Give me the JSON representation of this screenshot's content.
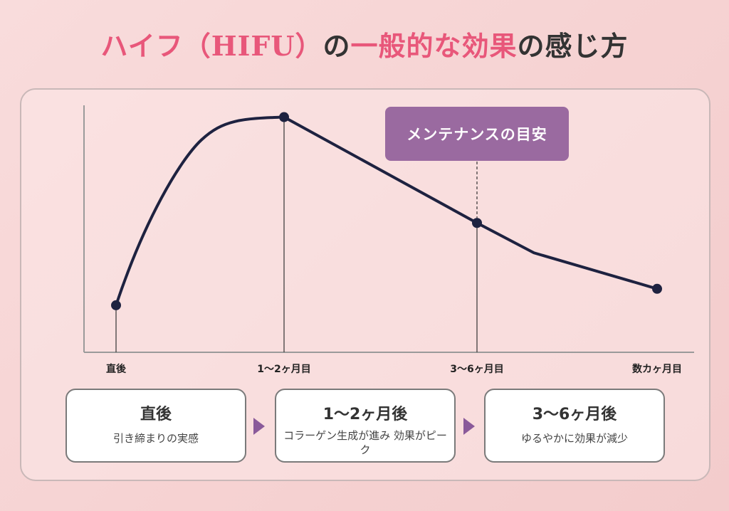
{
  "title": {
    "part1": "ハイフ（HIFU）",
    "part2": "の",
    "part3": "一般的な効果",
    "part4": "の感じ方"
  },
  "chart_data": {
    "type": "line",
    "title": "",
    "xlabel": "",
    "ylabel": "",
    "categories": [
      "直後",
      "1〜2ヶ月目",
      "3〜6ヶ月目",
      "数カヶ月目"
    ],
    "series": [
      {
        "values": [
          0.2,
          1.0,
          0.55,
          0.27
        ]
      }
    ],
    "ylim": [
      0,
      1.05
    ],
    "grid": false,
    "annotation": "メンテナンスの目安",
    "annotation_at": "3〜6ヶ月目"
  },
  "colors": {
    "title_pink": "#e8577a",
    "line": "#1e2240",
    "annotation_bg": "#9a6aa0",
    "arrow": "#8a5a9a"
  },
  "cards": [
    {
      "head": "直後",
      "desc": "引き締まりの実感"
    },
    {
      "head": "1〜2ヶ月後",
      "desc": "コラーゲン生成が進み 効果がピーク"
    },
    {
      "head": "3〜6ヶ月後",
      "desc": "ゆるやかに効果が減少"
    }
  ]
}
